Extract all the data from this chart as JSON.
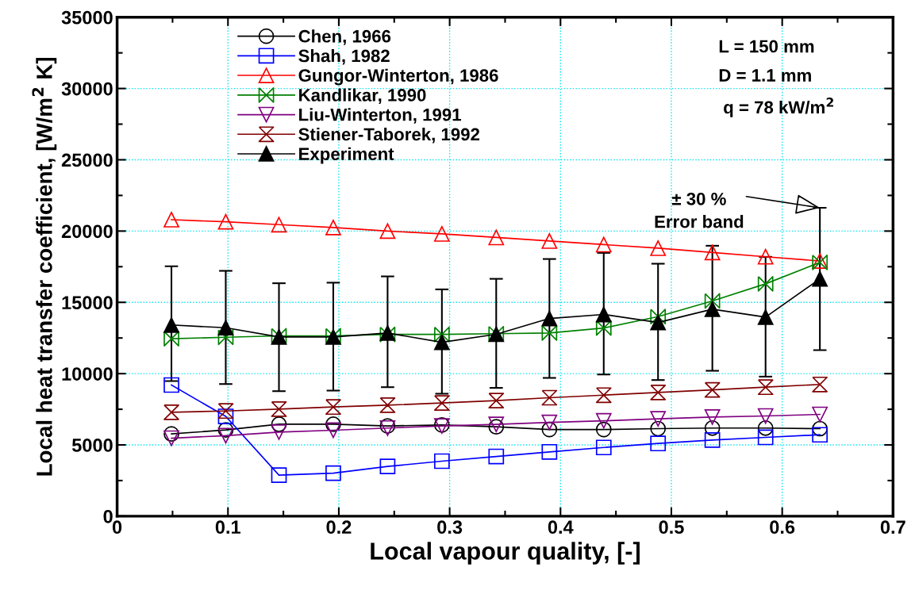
{
  "chart_data": {
    "type": "line",
    "xlabel": "Local vapour quality, [-]",
    "ylabel": "Local heat transfer coefficient, [W/m$^{2}$ K]",
    "x": [
      0.049,
      0.098,
      0.146,
      0.195,
      0.244,
      0.293,
      0.342,
      0.39,
      0.439,
      0.488,
      0.537,
      0.585,
      0.634
    ],
    "xlim": [
      0,
      0.7
    ],
    "xticks": [
      0,
      0.1,
      0.2,
      0.3,
      0.4,
      0.5,
      0.6,
      0.7
    ],
    "ylim": [
      0,
      35000
    ],
    "yticks": [
      0,
      5000,
      10000,
      15000,
      20000,
      25000,
      30000,
      35000
    ],
    "grid": true,
    "legend": "top left",
    "line_style": "solid",
    "series": [
      {
        "name": "Chen, 1966",
        "color": "#000000",
        "marker": "circle",
        "values": [
          5770,
          6050,
          6450,
          6450,
          6330,
          6400,
          6270,
          6080,
          6080,
          6140,
          6180,
          6180,
          6140
        ]
      },
      {
        "name": "Shah, 1982",
        "color": "#0000ff",
        "marker": "square",
        "values": [
          9200,
          7000,
          2880,
          3020,
          3490,
          3860,
          4190,
          4510,
          4820,
          5100,
          5340,
          5530,
          5710
        ]
      },
      {
        "name": "Gungor-Winterton, 1986",
        "color": "#ff0000",
        "marker": "triangle",
        "values": [
          20800,
          20650,
          20450,
          20250,
          20000,
          19800,
          19550,
          19300,
          19050,
          18800,
          18500,
          18200,
          17900
        ]
      },
      {
        "name": "Kandlikar, 1990",
        "color": "#008000",
        "marker": "diamond",
        "values": [
          12450,
          12550,
          12650,
          12650,
          12750,
          12750,
          12800,
          12850,
          13200,
          14000,
          15100,
          16300,
          17800
        ]
      },
      {
        "name": "Liu-Winterton, 1991",
        "color": "#800080",
        "marker": "triangle_down",
        "values": [
          5470,
          5650,
          5900,
          6030,
          6180,
          6330,
          6440,
          6580,
          6690,
          6830,
          6950,
          7030,
          7140
        ]
      },
      {
        "name": "Stiener-Taborek, 1992",
        "color": "#800000",
        "marker": "diamond",
        "values": [
          7290,
          7380,
          7510,
          7660,
          7790,
          7940,
          8110,
          8310,
          8490,
          8680,
          8860,
          9050,
          9240
        ]
      },
      {
        "name": "Experiment",
        "color": "#000000",
        "marker": "triangle",
        "values": [
          13410,
          13220,
          12570,
          12570,
          12850,
          12200,
          12760,
          13870,
          14150,
          13590,
          14520,
          13960,
          16650
        ],
        "errors": [
          [
            9480,
            17530
          ],
          [
            9270,
            17210
          ],
          [
            8770,
            16340
          ],
          [
            8810,
            16380
          ],
          [
            9050,
            16820
          ],
          [
            8590,
            15910
          ],
          [
            9000,
            16650
          ],
          [
            9700,
            18040
          ],
          [
            9940,
            18470
          ],
          [
            9550,
            17710
          ],
          [
            10200,
            18970
          ],
          [
            9790,
            18190
          ],
          [
            11650,
            21630
          ]
        ]
      }
    ],
    "annotations": [
      "L = 150 mm",
      "D = 1.1 mm",
      "q = 78 kW/m$^{2}$",
      {
        "text": "± 30 %\nError band",
        "x": 0.634,
        "y": 21630
      }
    ]
  }
}
